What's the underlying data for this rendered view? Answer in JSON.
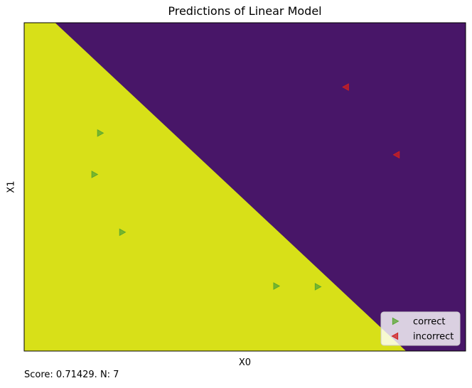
{
  "chart_data": {
    "type": "scatter",
    "title": "Predictions of Linear Model",
    "xlabel": "X0",
    "ylabel": "X1",
    "xlim": [
      0,
      1
    ],
    "ylim": [
      0,
      1
    ],
    "grid": false,
    "legend_position": "bottom-right",
    "regions": {
      "boundary": [
        [
          0.07,
          1.0
        ],
        [
          0.865,
          0.0
        ]
      ],
      "class_high_color": "#481668",
      "class_low_color": "#d8e018"
    },
    "series": [
      {
        "name": "correct",
        "marker": "triangle-right",
        "color": "#5aa832",
        "x": [
          0.172,
          0.159,
          0.222,
          0.571,
          0.665
        ],
        "y": [
          0.664,
          0.538,
          0.362,
          0.198,
          0.196
        ]
      },
      {
        "name": "incorrect",
        "marker": "triangle-left",
        "color": "#d0201f",
        "x": [
          0.729,
          0.844
        ],
        "y": [
          0.804,
          0.598
        ]
      }
    ]
  },
  "footer": {
    "score_text": "Score: 0.71429. N: 7"
  }
}
